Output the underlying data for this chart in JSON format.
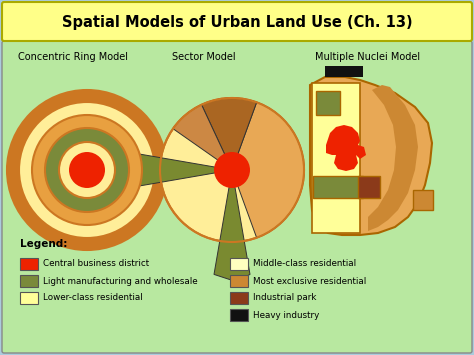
{
  "title": "Spatial Models of Urban Land Use (Ch. 13)",
  "title_bg": "#ffff88",
  "title_color": "#000000",
  "outer_bg": "#aaccdd",
  "panel_bg": "#b8e8a0",
  "colors": {
    "cbd": "#ee2200",
    "light_mfg": "#7a8a3a",
    "lower_res": "#ffff99",
    "middle_res": "#ffffc0",
    "most_exclusive": "#cc8833",
    "most_exclusive_light": "#e8a855",
    "industrial_park": "#8b3a1a",
    "heavy_industry": "#111111",
    "ring_outer": "#cc7722",
    "ring_yellow": "#ffee99",
    "ring_mid_orange": "#e8a040",
    "ring_inner_olive": "#7a8a3a",
    "sector_brown": "#aa6622",
    "sector_tan": "#cc8844",
    "sector_olive": "#7a8a30",
    "nuclei_inner_yellow": "#ffff99",
    "nuclei_outline": "#aa6600"
  },
  "model_labels": [
    "Concentric Ring Model",
    "Sector Model",
    "Multiple Nuclei Model"
  ],
  "legend_left": [
    {
      "label": "Central business district",
      "color": "#ee2200"
    },
    {
      "label": "Light manufacturing and wholesale",
      "color": "#7a8a3a"
    },
    {
      "label": "Lower-class residential",
      "color": "#ffff99"
    }
  ],
  "legend_right": [
    {
      "label": "Middle-class residential",
      "color": "#ffffc0"
    },
    {
      "label": "Most exclusive residential",
      "color": "#cc8833"
    },
    {
      "label": "Industrial park",
      "color": "#8b3a1a"
    },
    {
      "label": "Heavy industry",
      "color": "#111111"
    }
  ]
}
